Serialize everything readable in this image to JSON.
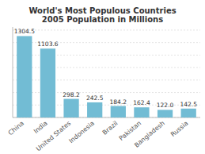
{
  "chart_data": {
    "type": "bar",
    "title": "World's Most Populous Countries\n2005 Population in Millions",
    "categories": [
      "China",
      "India",
      "United States",
      "Indonesia",
      "Brazil",
      "Pakistan",
      "Bangladesh",
      "Russia"
    ],
    "values": [
      1304.5,
      1103.6,
      298.2,
      242.5,
      184.2,
      162.4,
      122.0,
      142.5
    ],
    "value_labels": [
      "1304.5",
      "1103.6",
      "298.2",
      "242.5",
      "184.2",
      "162.4",
      "122.0",
      "142.5"
    ],
    "color": "#72bcd4",
    "ylim": [
      0,
      1450
    ],
    "yticks": [
      0,
      200,
      400,
      600,
      800,
      1000,
      1200,
      1400
    ],
    "grid": true,
    "data_labels": true,
    "tick_labels": "x"
  }
}
